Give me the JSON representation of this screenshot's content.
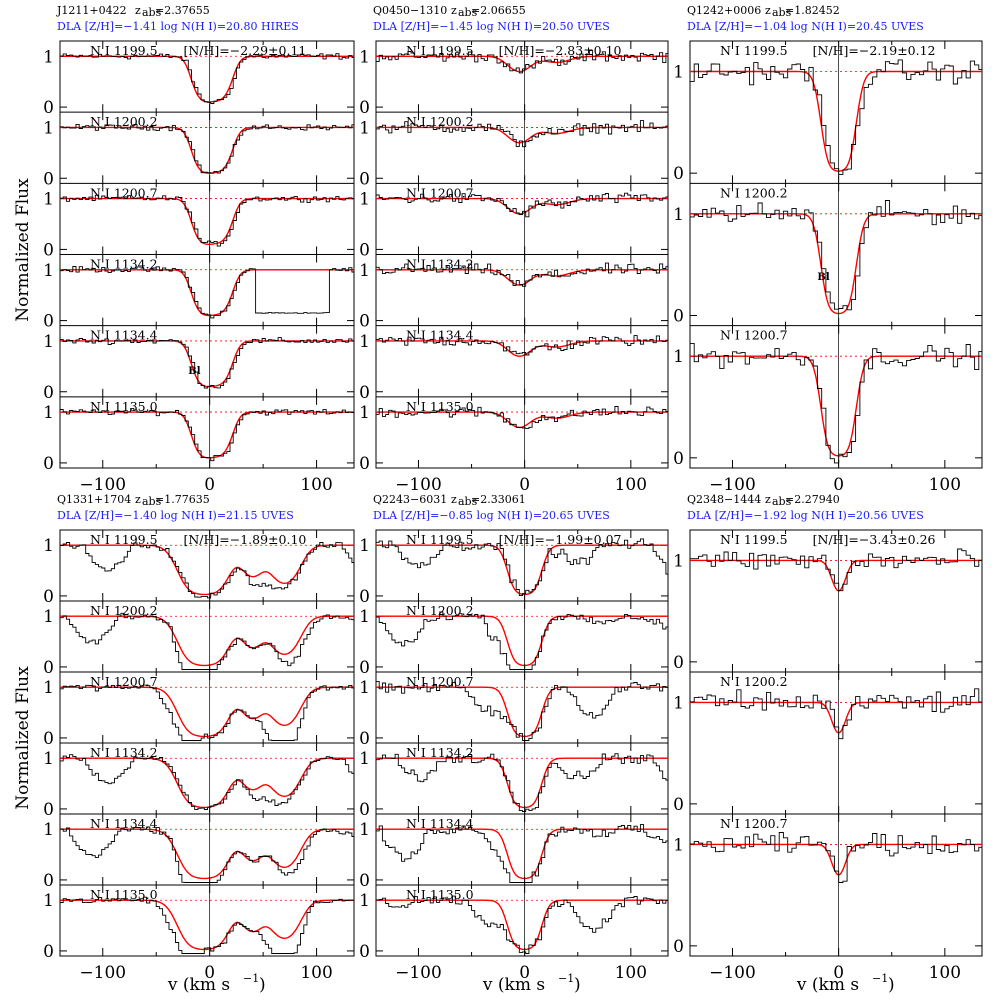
{
  "figure": {
    "ylabel": "Normalized Flux",
    "xlabel_main": "v (km s",
    "xlabel_exp": "−1",
    "xlabel_close": ")"
  },
  "chart_data": [
    {
      "type": "line",
      "quasar": "J1211+0422",
      "zabs": "2.37655",
      "subtitle": "DLA [Z/H]=−1.41 log N(H I)=20.80 HIRES",
      "nh_label": "[N/H]=−2.29±0.11",
      "xlim": [
        -140,
        135
      ],
      "xticks": [
        -100,
        0,
        100
      ],
      "xtick_labels": [
        "−100",
        "0",
        "100"
      ],
      "ylim": [
        -0.1,
        1.3
      ],
      "yticks": [
        0,
        1
      ],
      "lines": [
        "N I 1199.5",
        "N I 1200.2",
        "N I 1200.7",
        "N I 1134.2",
        "N I 1134.4",
        "N I 1135.0"
      ],
      "model_components": [
        {
          "v": -5,
          "depth": 0.85,
          "sigma": 8
        },
        {
          "v": 10,
          "depth": 0.8,
          "sigma": 8
        }
      ],
      "blend_label": "Bl",
      "blend_line": "N I 1134.4"
    },
    {
      "type": "line",
      "quasar": "Q0450−1310",
      "zabs": "2.06655",
      "subtitle": "DLA [Z/H]=−1.45 log N(H I)=20.50 UVES",
      "nh_label": "[N/H]=−2.83±0.10",
      "xlim": [
        -140,
        135
      ],
      "xticks": [
        -100,
        0,
        100
      ],
      "xtick_labels": [
        "−100",
        "0",
        "100"
      ],
      "ylim": [
        -0.1,
        1.3
      ],
      "yticks": [
        0,
        1
      ],
      "lines": [
        "N I 1199.5",
        "N I 1200.2",
        "N I 1200.7",
        "N I 1134.2",
        "N I 1134.4",
        "N I 1135.0"
      ],
      "model_components": [
        {
          "v": -5,
          "depth": 0.3,
          "sigma": 10
        },
        {
          "v": 30,
          "depth": 0.12,
          "sigma": 12
        }
      ]
    },
    {
      "type": "line",
      "quasar": "Q1242+0006",
      "zabs": "1.82452",
      "subtitle": "DLA [Z/H]=−1.04 log N(H I)=20.45 UVES",
      "nh_label": "[N/H]=−2.19±0.12",
      "xlim": [
        -140,
        135
      ],
      "xticks": [
        -100,
        0,
        100
      ],
      "xtick_labels": [
        "−100",
        "0",
        "100"
      ],
      "ylim": [
        -0.1,
        1.3
      ],
      "yticks": [
        0,
        1
      ],
      "lines": [
        "N I 1199.5",
        "N I 1200.2",
        "N I 1200.7"
      ],
      "model_components": [
        {
          "v": 0,
          "depth": 0.98,
          "sigma": 9
        }
      ],
      "blend_label": "Bl",
      "blend_line": "N I 1200.2"
    },
    {
      "type": "line",
      "quasar": "Q1331+1704",
      "zabs": "1.77635",
      "subtitle": "DLA [Z/H]=−1.40 log N(H I)=21.15 UVES",
      "nh_label": "[N/H]=−1.89±0.10",
      "xlim": [
        -140,
        135
      ],
      "xticks": [
        -100,
        0,
        100
      ],
      "xtick_labels": [
        "−100",
        "0",
        "100"
      ],
      "ylim": [
        -0.1,
        1.3
      ],
      "yticks": [
        0,
        1
      ],
      "lines": [
        "N I 1199.5",
        "N I 1200.2",
        "N I 1200.7",
        "N I 1134.2",
        "N I 1134.4",
        "N I 1135.0"
      ],
      "model_components": [
        {
          "v": -5,
          "depth": 0.97,
          "sigma": 14
        },
        {
          "v": 40,
          "depth": 0.6,
          "sigma": 9
        },
        {
          "v": 70,
          "depth": 0.75,
          "sigma": 11
        }
      ]
    },
    {
      "type": "line",
      "quasar": "Q2243−6031",
      "zabs": "2.33061",
      "subtitle": "DLA [Z/H]=−0.85 log N(H I)=20.65 UVES",
      "nh_label": "[N/H]=−1.99±0.07",
      "xlim": [
        -140,
        135
      ],
      "xticks": [
        -100,
        0,
        100
      ],
      "xtick_labels": [
        "−100",
        "0",
        "100"
      ],
      "ylim": [
        -0.1,
        1.3
      ],
      "yticks": [
        0,
        1
      ],
      "lines": [
        "N I 1199.5",
        "N I 1200.2",
        "N I 1200.7",
        "N I 1134.2",
        "N I 1134.4",
        "N I 1135.0"
      ],
      "model_components": [
        {
          "v": 0,
          "depth": 0.97,
          "sigma": 9
        }
      ]
    },
    {
      "type": "line",
      "quasar": "Q2348−1444",
      "zabs": "2.27940",
      "subtitle": "DLA [Z/H]=−1.92 log N(H I)=20.56 UVES",
      "nh_label": "[N/H]=−3.43±0.26",
      "xlim": [
        -140,
        135
      ],
      "xticks": [
        -100,
        0,
        100
      ],
      "xtick_labels": [
        "−100",
        "0",
        "100"
      ],
      "ylim": [
        -0.1,
        1.3
      ],
      "yticks": [
        0,
        1
      ],
      "lines": [
        "N I 1199.5",
        "N I 1200.2",
        "N I 1200.7"
      ],
      "model_components": [
        {
          "v": 0,
          "depth": 0.3,
          "sigma": 6
        }
      ]
    }
  ],
  "colors": {
    "model": "#ff0000",
    "data": "#000000",
    "subtitle": "#1a1aff"
  }
}
